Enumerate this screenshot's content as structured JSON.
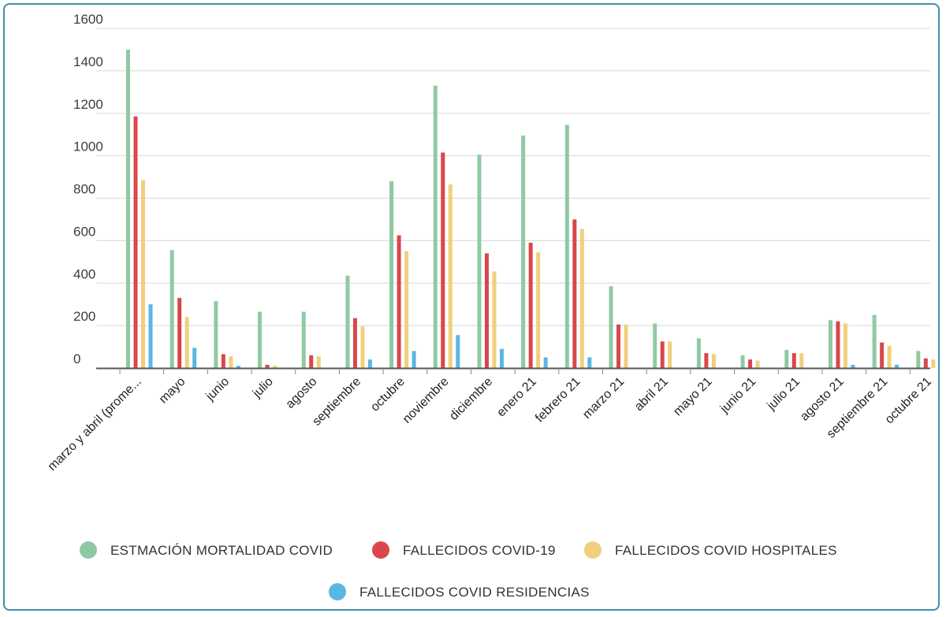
{
  "chart_data": {
    "type": "bar",
    "title": "",
    "xlabel": "",
    "ylabel": "",
    "ylim": [
      0,
      1600
    ],
    "yticks": [
      0,
      200,
      400,
      600,
      800,
      1000,
      1200,
      1400,
      1600
    ],
    "grid": true,
    "legend_position": "bottom",
    "categories": [
      "marzo y abril (prome...",
      "mayo",
      "junio",
      "julio",
      "agosto",
      "septiembre",
      "octubre",
      "noviembre",
      "diciembre",
      "enero 21",
      "febrero 21",
      "marzo 21",
      "abril 21",
      "mayo 21",
      "junio 21",
      "julio 21",
      "agosto 21",
      "septiembre 21",
      "octubre 21"
    ],
    "series": [
      {
        "name": "ESTMACIÓN MORTALIDAD COVID",
        "color": "#8fc9a3",
        "values": [
          1500,
          555,
          315,
          265,
          265,
          435,
          880,
          1330,
          1005,
          1095,
          1145,
          385,
          210,
          140,
          60,
          85,
          225,
          250,
          80
        ]
      },
      {
        "name": "FALLECIDOS COVID-19",
        "color": "#d9474b",
        "values": [
          1185,
          330,
          65,
          15,
          60,
          235,
          625,
          1015,
          540,
          590,
          700,
          205,
          125,
          70,
          40,
          70,
          220,
          120,
          45
        ]
      },
      {
        "name": "FALLECIDOS COVID HOSPITALES",
        "color": "#f0d07c",
        "values": [
          885,
          240,
          55,
          10,
          55,
          195,
          550,
          865,
          455,
          545,
          655,
          205,
          125,
          65,
          35,
          70,
          210,
          105,
          40
        ]
      },
      {
        "name": "FALLECIDOS COVID RESIDENCIAS",
        "color": "#5ab7e3",
        "values": [
          300,
          95,
          10,
          0,
          0,
          40,
          80,
          155,
          90,
          50,
          50,
          0,
          0,
          0,
          0,
          0,
          15,
          15,
          0
        ]
      }
    ]
  }
}
